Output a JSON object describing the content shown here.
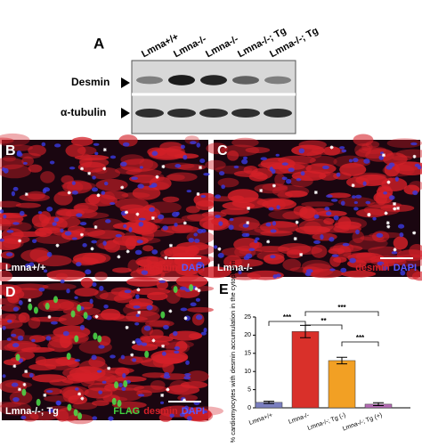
{
  "panel_a": {
    "label": "A",
    "lanes": [
      "Lmna+/+",
      "Lmna-/-",
      "Lmna-/-",
      "Lmna-/-; Tg",
      "Lmna-/-; Tg"
    ],
    "rows": [
      "Desmin",
      "α-tubulin"
    ]
  },
  "panel_b": {
    "label": "B",
    "genotype": "Lmna+/+",
    "stain": [
      "desmin",
      "DAPI"
    ]
  },
  "panel_c": {
    "label": "C",
    "genotype": "Lmna-/-",
    "stain": [
      "desmin",
      "DAPI"
    ]
  },
  "panel_d": {
    "label": "D",
    "genotype": "Lmna-/-; Tg",
    "stain": [
      "FLAG",
      "desmin",
      "DAPI"
    ]
  },
  "chart_data": {
    "type": "bar",
    "panel_label": "E",
    "y_label": "% cardiomyocytes with desmin accumulation in the cytoplasm",
    "categories": [
      "Lmna+/+",
      "Lmna-/-",
      "Lmna-/-; Tg (-)",
      "Lmna-/-; Tg (+)"
    ],
    "values": [
      1.5,
      21,
      13,
      1
    ],
    "errors": [
      0.3,
      1.7,
      0.9,
      0.4
    ],
    "colors": [
      "#7b7fc0",
      "#d9302a",
      "#f2a024",
      "#b56cb5"
    ],
    "ylim": [
      0,
      25
    ],
    "yticks": [
      0,
      5,
      10,
      15,
      20,
      25
    ],
    "significance": [
      "***",
      "**",
      "***",
      "***"
    ]
  }
}
